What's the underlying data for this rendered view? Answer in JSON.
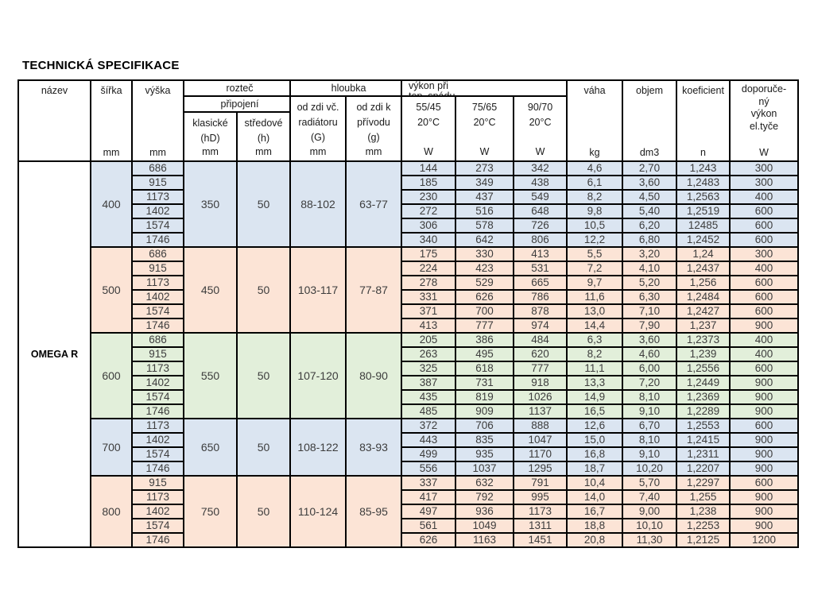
{
  "title": "TECHNICKÁ SPECIFIKACE",
  "colors": {
    "blue": "#dbe5f1",
    "salmon": "#fce4d6",
    "green": "#e2efda"
  },
  "table": {
    "product": "OMEGA R",
    "header": {
      "nazev": "název",
      "sirka": "šířka",
      "vyska": "výška",
      "roztec": "rozteč",
      "pripojeni": "připojení",
      "klasicke": [
        "klasické",
        "(hD)"
      ],
      "stredove": [
        "středové",
        "(h)"
      ],
      "hloubka": "hloubka",
      "od_zdi_radiator": [
        "od zdi  vč.",
        "radiátoru",
        "(G)"
      ],
      "od_zdi_privod": [
        "od zdi  k",
        "přívodu",
        "(g)"
      ],
      "vykon_spad": [
        "výkon při",
        "tep. spádu"
      ],
      "grad1": [
        "55/45",
        "20°C"
      ],
      "grad2": [
        "75/65",
        "20°C"
      ],
      "grad3": [
        "90/70",
        "20°C"
      ],
      "vaha": "váha",
      "objem": "objem",
      "koeficient": "koeficient",
      "doporuceny": [
        "doporuče-",
        "ný",
        "výkon",
        "el.tyče"
      ],
      "units": {
        "sirka": "mm",
        "vyska": "mm",
        "klasicke": "mm",
        "stredove": "mm",
        "g": "mm",
        "g2": "mm",
        "w1": "W",
        "w2": "W",
        "w3": "W",
        "vaha": "kg",
        "objem": "dm3",
        "koeficient": "n",
        "el": "W"
      }
    },
    "groups": [
      {
        "width": "400",
        "color": "blue",
        "klasicke": "350",
        "stredove": "50",
        "g": "88-102",
        "g2": "63-77",
        "rows": [
          {
            "h": "686",
            "p1": "144",
            "p2": "273",
            "p3": "342",
            "kg": "4,6",
            "dm3": "2,70",
            "n": "1,243",
            "el": "300"
          },
          {
            "h": "915",
            "p1": "185",
            "p2": "349",
            "p3": "438",
            "kg": "6,1",
            "dm3": "3,60",
            "n": "1,2483",
            "el": "300"
          },
          {
            "h": "1173",
            "p1": "230",
            "p2": "437",
            "p3": "549",
            "kg": "8,2",
            "dm3": "4,50",
            "n": "1,2563",
            "el": "400"
          },
          {
            "h": "1402",
            "p1": "272",
            "p2": "516",
            "p3": "648",
            "kg": "9,8",
            "dm3": "5,40",
            "n": "1,2519",
            "el": "600"
          },
          {
            "h": "1574",
            "p1": "306",
            "p2": "578",
            "p3": "726",
            "kg": "10,5",
            "dm3": "6,20",
            "n": "12485",
            "el": "600"
          },
          {
            "h": "1746",
            "p1": "340",
            "p2": "642",
            "p3": "806",
            "kg": "12,2",
            "dm3": "6,80",
            "n": "1,2452",
            "el": "600"
          }
        ]
      },
      {
        "width": "500",
        "color": "salmon",
        "klasicke": "450",
        "stredove": "50",
        "g": "103-117",
        "g2": "77-87",
        "rows": [
          {
            "h": "686",
            "p1": "175",
            "p2": "330",
            "p3": "413",
            "kg": "5,5",
            "dm3": "3,20",
            "n": "1,24",
            "el": "300"
          },
          {
            "h": "915",
            "p1": "224",
            "p2": "423",
            "p3": "531",
            "kg": "7,2",
            "dm3": "4,10",
            "n": "1,2437",
            "el": "400"
          },
          {
            "h": "1173",
            "p1": "278",
            "p2": "529",
            "p3": "665",
            "kg": "9,7",
            "dm3": "5,20",
            "n": "1,256",
            "el": "600"
          },
          {
            "h": "1402",
            "p1": "331",
            "p2": "626",
            "p3": "786",
            "kg": "11,6",
            "dm3": "6,30",
            "n": "1,2484",
            "el": "600"
          },
          {
            "h": "1574",
            "p1": "371",
            "p2": "700",
            "p3": "878",
            "kg": "13,0",
            "dm3": "7,10",
            "n": "1,2427",
            "el": "600"
          },
          {
            "h": "1746",
            "p1": "413",
            "p2": "777",
            "p3": "974",
            "kg": "14,4",
            "dm3": "7,90",
            "n": "1,237",
            "el": "900"
          }
        ]
      },
      {
        "width": "600",
        "color": "green",
        "klasicke": "550",
        "stredove": "50",
        "g": "107-120",
        "g2": "80-90",
        "rows": [
          {
            "h": "686",
            "p1": "205",
            "p2": "386",
            "p3": "484",
            "kg": "6,3",
            "dm3": "3,60",
            "n": "1,2373",
            "el": "400"
          },
          {
            "h": "915",
            "p1": "263",
            "p2": "495",
            "p3": "620",
            "kg": "8,2",
            "dm3": "4,60",
            "n": "1,239",
            "el": "400"
          },
          {
            "h": "1173",
            "p1": "325",
            "p2": "618",
            "p3": "777",
            "kg": "11,1",
            "dm3": "6,00",
            "n": "1,2556",
            "el": "600"
          },
          {
            "h": "1402",
            "p1": "387",
            "p2": "731",
            "p3": "918",
            "kg": "13,3",
            "dm3": "7,20",
            "n": "1,2449",
            "el": "900"
          },
          {
            "h": "1574",
            "p1": "435",
            "p2": "819",
            "p3": "1026",
            "kg": "14,9",
            "dm3": "8,10",
            "n": "1,2369",
            "el": "900"
          },
          {
            "h": "1746",
            "p1": "485",
            "p2": "909",
            "p3": "1137",
            "kg": "16,5",
            "dm3": "9,10",
            "n": "1,2289",
            "el": "900"
          }
        ]
      },
      {
        "width": "700",
        "color": "blue",
        "klasicke": "650",
        "stredove": "50",
        "g": "108-122",
        "g2": "83-93",
        "rows": [
          {
            "h": "1173",
            "p1": "372",
            "p2": "706",
            "p3": "888",
            "kg": "12,6",
            "dm3": "6,70",
            "n": "1,2553",
            "el": "600"
          },
          {
            "h": "1402",
            "p1": "443",
            "p2": "835",
            "p3": "1047",
            "kg": "15,0",
            "dm3": "8,10",
            "n": "1,2415",
            "el": "900"
          },
          {
            "h": "1574",
            "p1": "499",
            "p2": "935",
            "p3": "1170",
            "kg": "16,8",
            "dm3": "9,10",
            "n": "1,2311",
            "el": "900"
          },
          {
            "h": "1746",
            "p1": "556",
            "p2": "1037",
            "p3": "1295",
            "kg": "18,7",
            "dm3": "10,20",
            "n": "1,2207",
            "el": "900"
          }
        ]
      },
      {
        "width": "800",
        "color": "salmon",
        "klasicke": "750",
        "stredove": "50",
        "g": "110-124",
        "g2": "85-95",
        "rows": [
          {
            "h": "915",
            "p1": "337",
            "p2": "632",
            "p3": "791",
            "kg": "10,4",
            "dm3": "5,70",
            "n": "1,2297",
            "el": "600"
          },
          {
            "h": "1173",
            "p1": "417",
            "p2": "792",
            "p3": "995",
            "kg": "14,0",
            "dm3": "7,40",
            "n": "1,255",
            "el": "900"
          },
          {
            "h": "1402",
            "p1": "497",
            "p2": "936",
            "p3": "1173",
            "kg": "16,7",
            "dm3": "9,00",
            "n": "1,238",
            "el": "900"
          },
          {
            "h": "1574",
            "p1": "561",
            "p2": "1049",
            "p3": "1311",
            "kg": "18,8",
            "dm3": "10,10",
            "n": "1,2253",
            "el": "900"
          },
          {
            "h": "1746",
            "p1": "626",
            "p2": "1163",
            "p3": "1451",
            "kg": "20,8",
            "dm3": "11,30",
            "n": "1,2125",
            "el": "1200"
          }
        ]
      }
    ]
  }
}
